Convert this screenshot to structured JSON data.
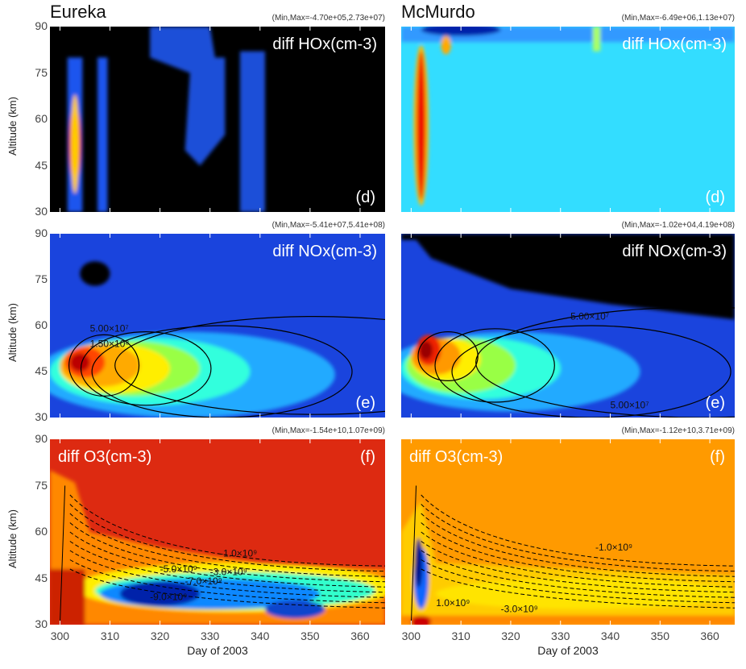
{
  "x_axis_label": "Day of 2003",
  "y_axis_label": "Altitude (km)",
  "stations": [
    "Eureka",
    "McMurdo"
  ],
  "chart_data": [
    {
      "type": "heatmap",
      "panel": "(d)",
      "station": "Eureka",
      "quantity": "diff HOx(cm-3)",
      "minmax": "(Min,Max=-4.70e+05,2.73e+07)",
      "xlim": [
        298,
        365
      ],
      "ylim": [
        30,
        90
      ],
      "xticks": [
        300,
        310,
        320,
        330,
        340,
        350,
        360
      ],
      "yticks": [
        30,
        45,
        60,
        75,
        90
      ],
      "contour_labels": []
    },
    {
      "type": "heatmap",
      "panel": "(d)",
      "station": "McMurdo",
      "quantity": "diff HOx(cm-3)",
      "minmax": "(Min,Max=-6.49e+06,1.13e+07)",
      "xlim": [
        298,
        365
      ],
      "ylim": [
        30,
        90
      ],
      "xticks": [
        300,
        310,
        320,
        330,
        340,
        350,
        360
      ],
      "yticks": [
        30,
        45,
        60,
        75,
        90
      ],
      "contour_labels": []
    },
    {
      "type": "heatmap",
      "panel": "(e)",
      "station": "Eureka",
      "quantity": "diff NOx(cm-3)",
      "minmax": "(Min,Max=-5.41e+07,5.41e+08)",
      "xlim": [
        298,
        365
      ],
      "ylim": [
        30,
        90
      ],
      "xticks": [
        300,
        310,
        320,
        330,
        340,
        350,
        360
      ],
      "yticks": [
        30,
        45,
        60,
        75,
        90
      ],
      "contour_labels": [
        "5.00×10⁷",
        "1.50×10⁸"
      ]
    },
    {
      "type": "heatmap",
      "panel": "(e)",
      "station": "McMurdo",
      "quantity": "diff NOx(cm-3)",
      "minmax": "(Min,Max=-1.02e+04,4.19e+08)",
      "xlim": [
        298,
        365
      ],
      "ylim": [
        30,
        90
      ],
      "xticks": [
        300,
        310,
        320,
        330,
        340,
        350,
        360
      ],
      "yticks": [
        30,
        45,
        60,
        75,
        90
      ],
      "contour_labels": [
        "5.00×10⁷",
        "5.00×10⁷"
      ]
    },
    {
      "type": "heatmap",
      "panel": "(f)",
      "station": "Eureka",
      "quantity": "diff O3(cm-3)",
      "minmax": "(Min,Max=-1.54e+10,1.07e+09)",
      "xlim": [
        298,
        365
      ],
      "ylim": [
        30,
        90
      ],
      "xticks": [
        300,
        310,
        320,
        330,
        340,
        350,
        360
      ],
      "yticks": [
        30,
        45,
        60,
        75,
        90
      ],
      "contour_labels": [
        "-1.0×10⁹",
        "-5.0×10⁹",
        "-3.0×10⁹",
        "-7.0×10⁹",
        "-9.0×10⁹"
      ]
    },
    {
      "type": "heatmap",
      "panel": "(f)",
      "station": "McMurdo",
      "quantity": "diff O3(cm-3)",
      "minmax": "(Min,Max=-1.12e+10,3.71e+09)",
      "xlim": [
        298,
        365
      ],
      "ylim": [
        30,
        90
      ],
      "xticks": [
        300,
        310,
        320,
        330,
        340,
        350,
        360
      ],
      "yticks": [
        30,
        45,
        60,
        75,
        90
      ],
      "contour_labels": [
        "-1.0×10⁹",
        "-3.0×10⁹",
        "1.0×10⁹"
      ]
    }
  ]
}
